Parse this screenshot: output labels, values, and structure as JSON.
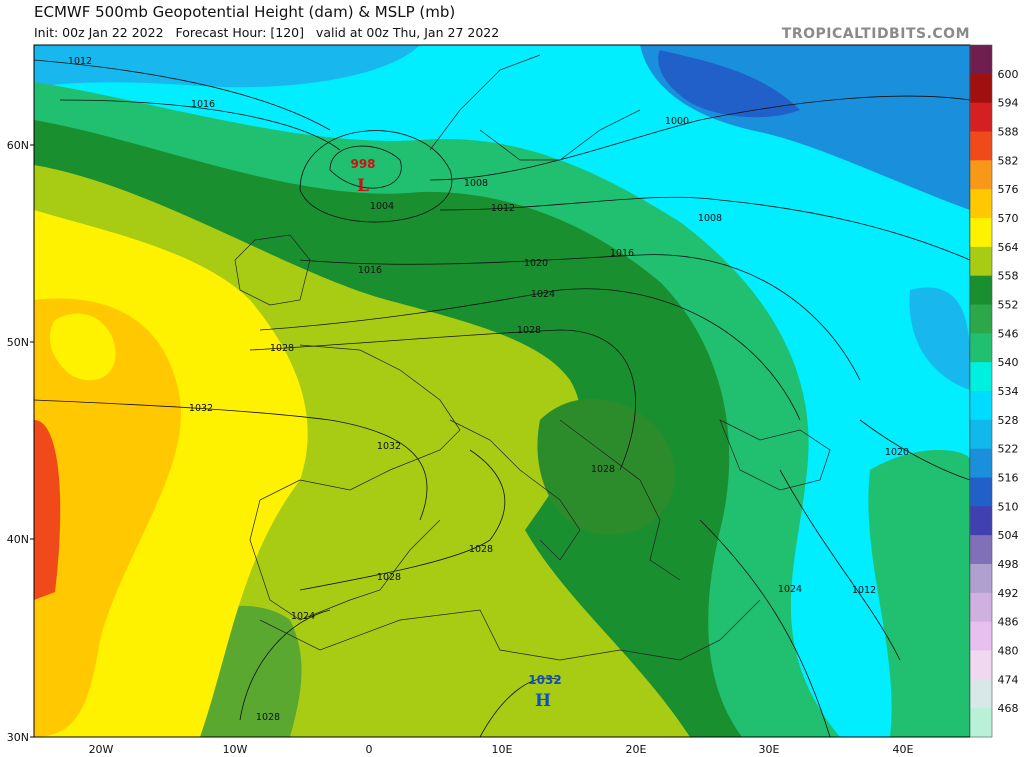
{
  "header": {
    "title": "ECMWF 500mb Geopotential Height (dam) & MSLP (mb)",
    "subtitle": "Init: 00z Jan 22 2022   Forecast Hour: [120]   valid at 00z Thu, Jan 27 2022",
    "credit": "TROPICALTIDBITS.COM"
  },
  "axes": {
    "lat": [
      "60N",
      "50N",
      "40N",
      "30N"
    ],
    "lon": [
      "20W",
      "10W",
      "0",
      "10E",
      "20E",
      "30E",
      "40E"
    ]
  },
  "colorbar": {
    "levels": [
      600,
      594,
      588,
      582,
      576,
      570,
      564,
      558,
      552,
      546,
      540,
      534,
      528,
      522,
      516,
      510,
      504,
      498,
      492,
      486,
      480,
      474,
      468
    ],
    "colors": [
      "#6e1f50",
      "#a01010",
      "#d42020",
      "#f04a1a",
      "#f89818",
      "#ffc800",
      "#fff200",
      "#a8cc14",
      "#1a8f30",
      "#2ca84a",
      "#20c070",
      "#00f0e0",
      "#00dcff",
      "#10b8ec",
      "#1a8fdc",
      "#2060c8",
      "#4040b0",
      "#8070b8",
      "#b0a0d0",
      "#d0b0e0",
      "#e8c0f0",
      "#f0d8f0",
      "#d8e8e8",
      "#b8f0d8"
    ]
  },
  "map_labels": {
    "isobars": [
      "1012",
      "1016",
      "1000",
      "1008",
      "1012",
      "1004",
      "1016",
      "1008",
      "1016",
      "1020",
      "1024",
      "1028",
      "1028",
      "1032",
      "1032",
      "1028",
      "1020",
      "1028",
      "1028",
      "1024",
      "1012",
      "1024",
      "1028"
    ],
    "low": {
      "value": "998",
      "symbol": "L"
    },
    "high": {
      "value": "1032",
      "symbol": "H"
    }
  }
}
